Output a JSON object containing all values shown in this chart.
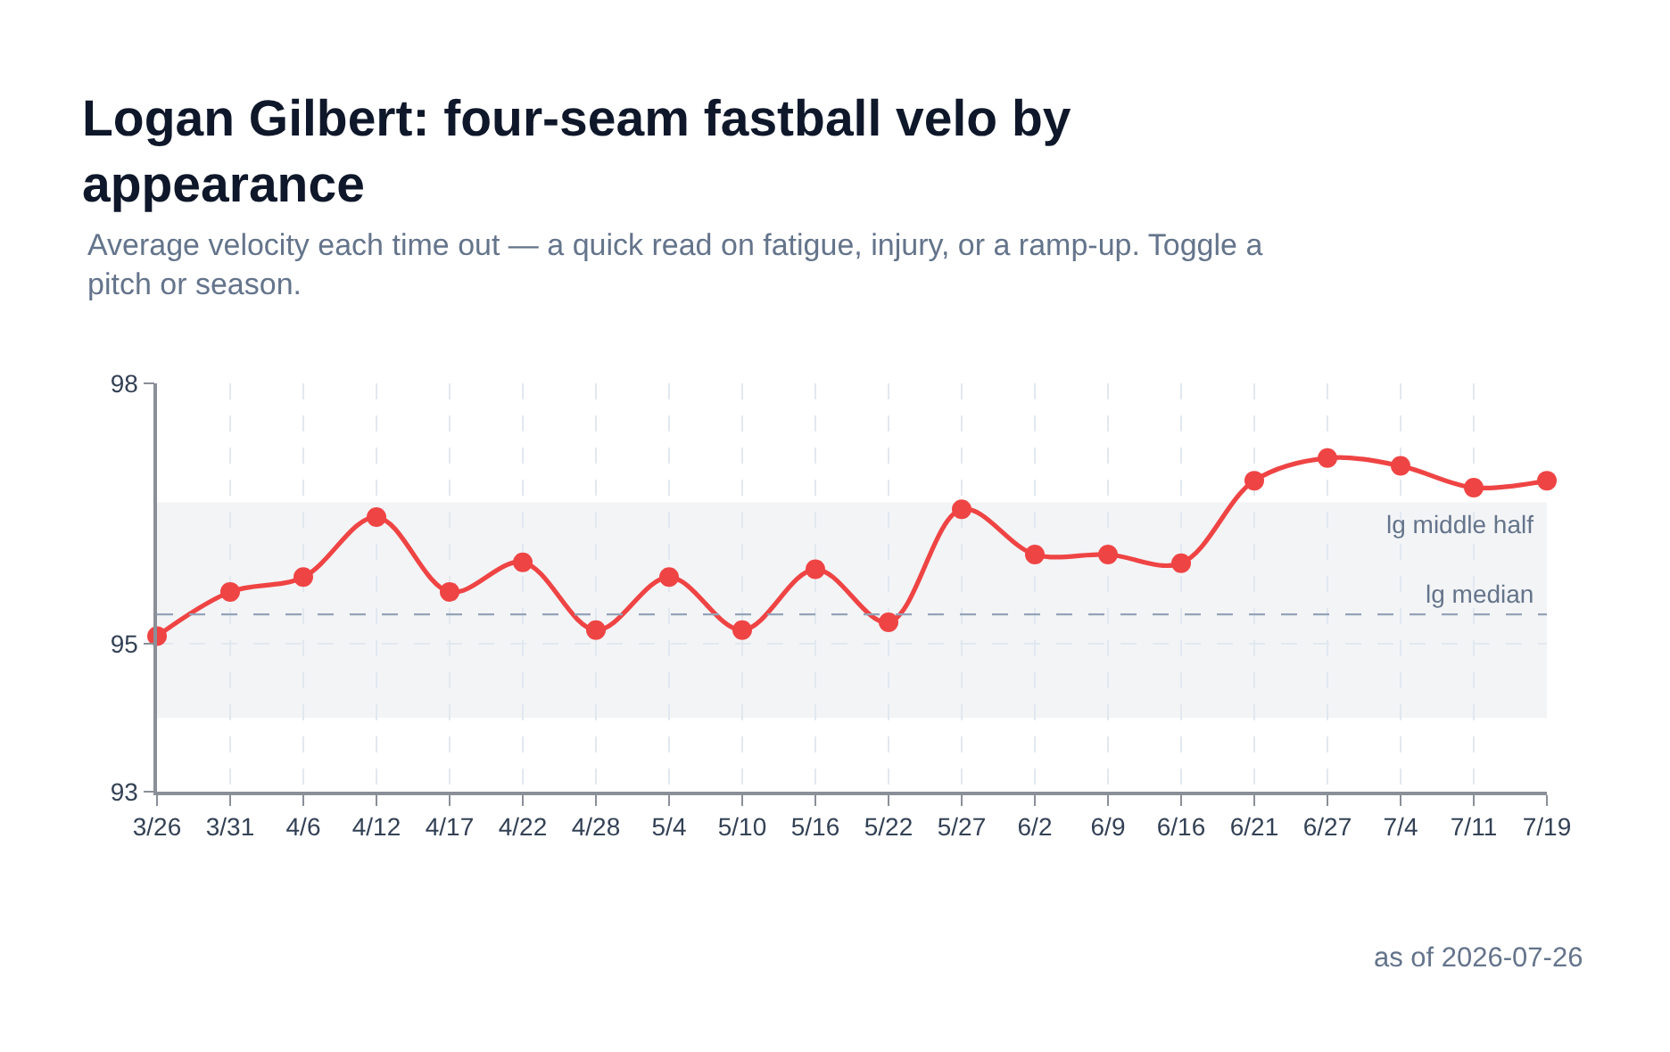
{
  "chart_data": {
    "type": "line",
    "title": "Logan Gilbert: four-seam fastball velo by appearance",
    "subtitle": "Average velocity each time out — a quick read on fatigue, injury, or a ramp-up. Toggle a pitch or season.",
    "annotations": [
      "as of 2026-07-26"
    ],
    "categories": [
      "3/26",
      "3/31",
      "4/6",
      "4/12",
      "4/17",
      "4/22",
      "4/28",
      "5/4",
      "5/10",
      "5/16",
      "5/22",
      "5/27",
      "6/2",
      "6/9",
      "6/16",
      "6/21",
      "6/27",
      "7/4",
      "7/11",
      "7/19"
    ],
    "series": [
      {
        "color": "#ef4444",
        "values": [
          95.09,
          95.6,
          95.77,
          96.46,
          95.6,
          95.94,
          95.16,
          95.77,
          95.16,
          95.86,
          95.25,
          96.55,
          96.03,
          96.03,
          95.93,
          96.88,
          97.14,
          97.05,
          96.8,
          96.88
        ]
      }
    ],
    "ylim": [
      93.3,
      98
    ],
    "yticks": [
      {
        "value": 93.3,
        "label": "93"
      },
      95,
      98
    ],
    "grid": true,
    "marker": "circle",
    "line_style": "solid",
    "ref_lines": [
      {
        "axis": "y",
        "value": 95.34,
        "label": "lg median",
        "color": "#94a3b8",
        "line_style": "dashed"
      }
    ],
    "bands": [
      {
        "axis": "y",
        "from": 94.15,
        "to": 96.63,
        "label": "lg middle half",
        "color": "#f3f4f6"
      }
    ]
  }
}
